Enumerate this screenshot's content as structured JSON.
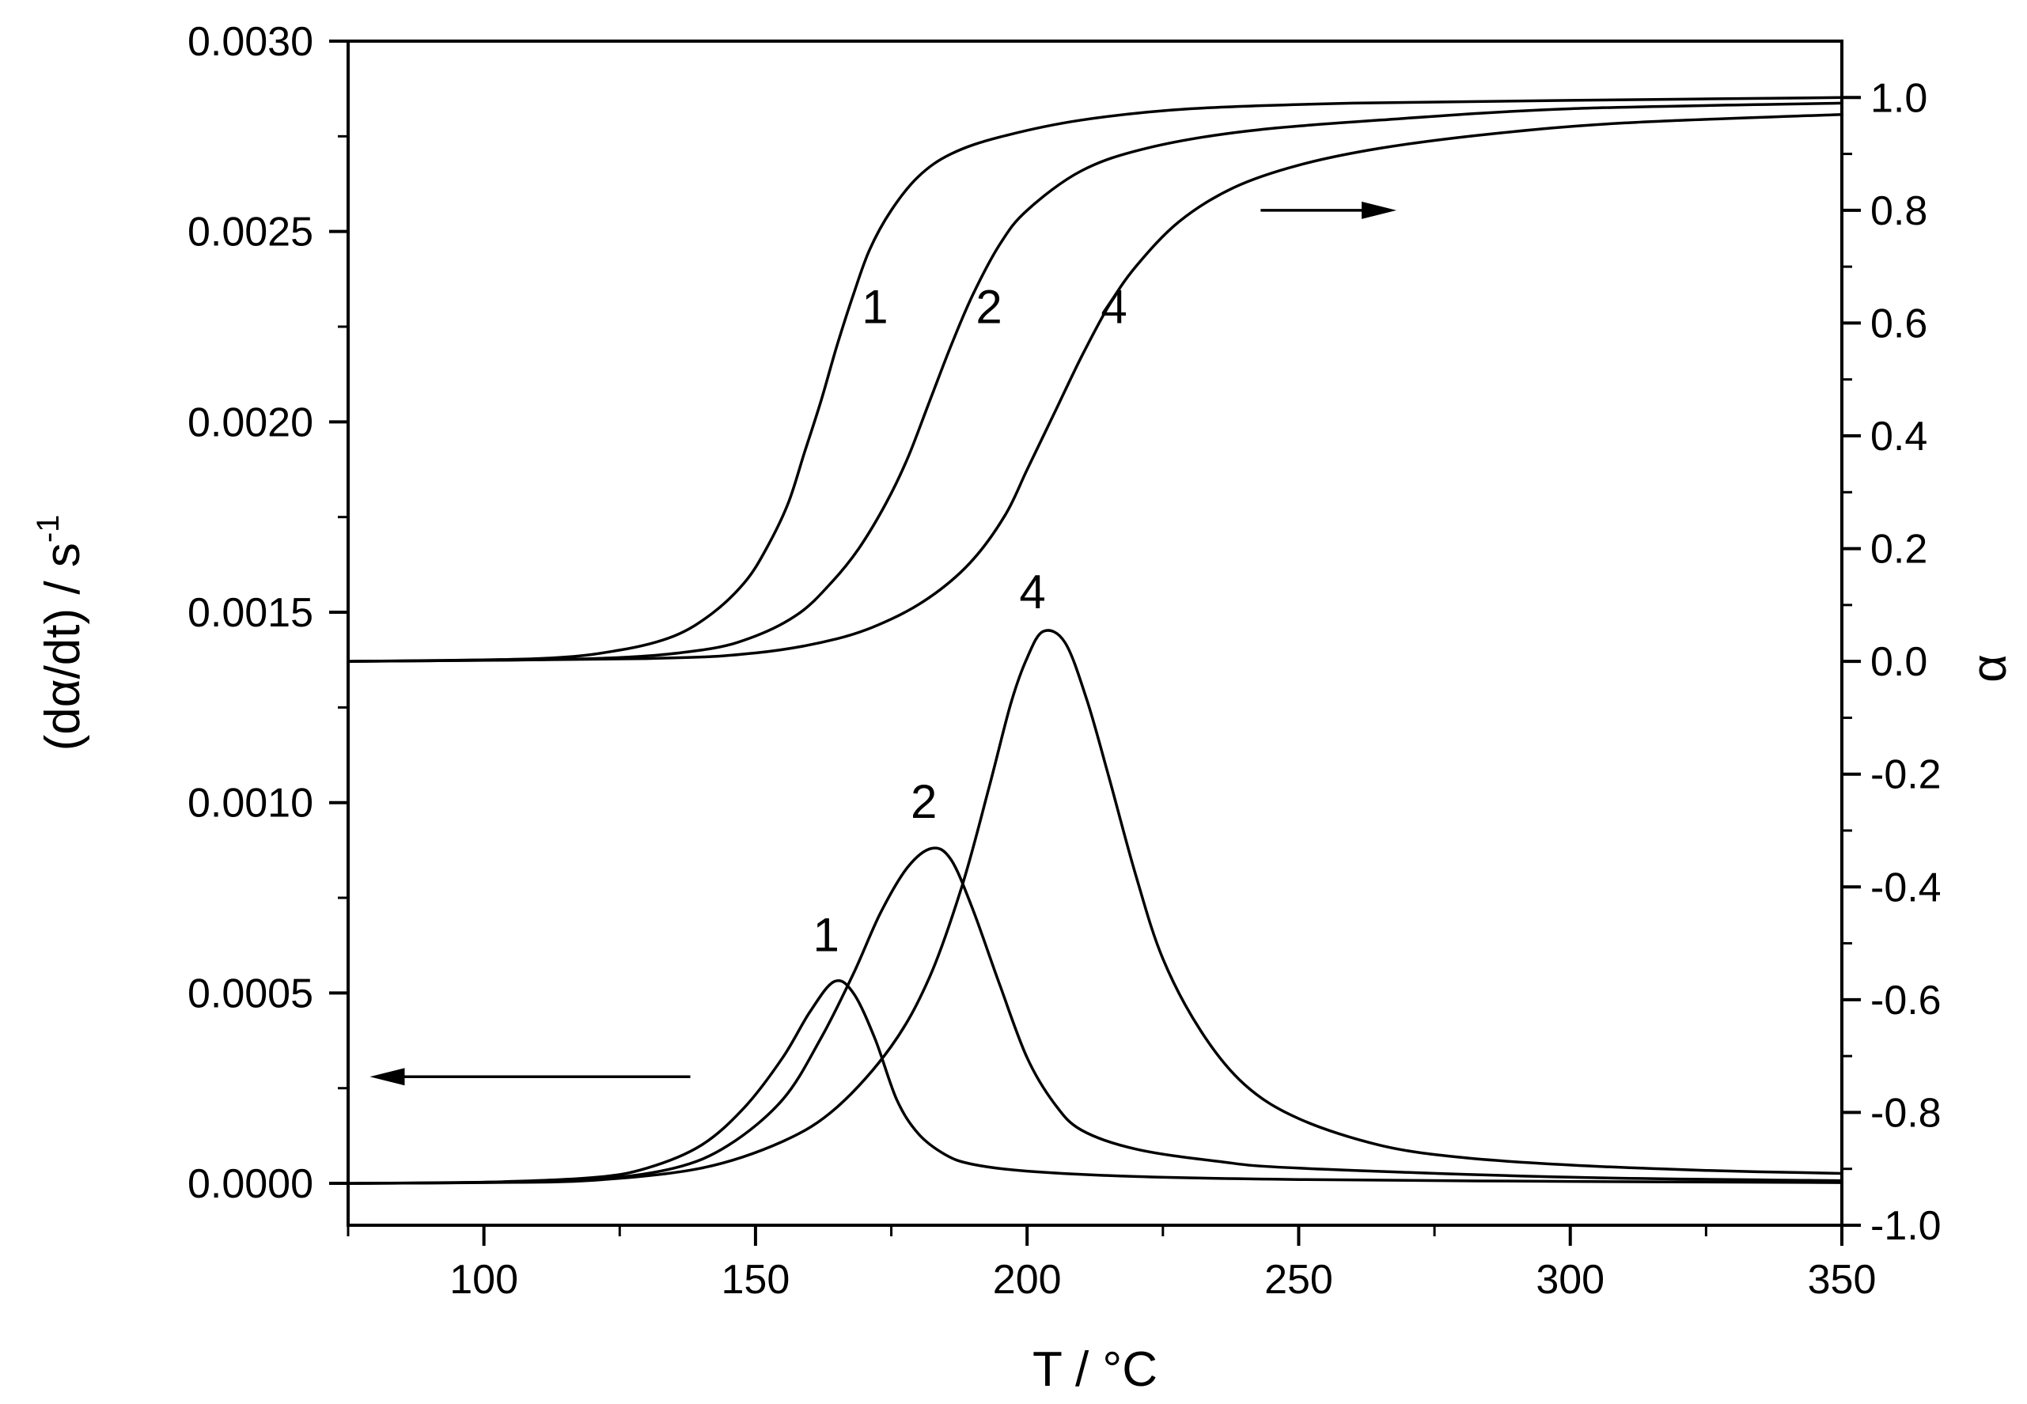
{
  "chart_data": {
    "type": "line",
    "title": "",
    "xlabel": "T / °C",
    "ylabel_left": {
      "main": "(dα/dt) / s",
      "superscript": "-1"
    },
    "ylabel_right": "α",
    "xlim": [
      75,
      350
    ],
    "ylim_left": [
      -0.00011,
      0.003
    ],
    "ylim_right": [
      -1.0,
      1.1
    ],
    "xticks": [
      100,
      150,
      200,
      250,
      300,
      350
    ],
    "xtick_labels": [
      "100",
      "150",
      "200",
      "250",
      "300",
      "350"
    ],
    "yticks_left": [
      0.0,
      0.0005,
      0.001,
      0.0015,
      0.002,
      0.0025,
      0.003
    ],
    "ytick_labels_left": [
      "0.0000",
      "0.0005",
      "0.0010",
      "0.0015",
      "0.0020",
      "0.0025",
      "0.0030"
    ],
    "yticks_right": [
      -1.0,
      -0.8,
      -0.6,
      -0.4,
      -0.2,
      0.0,
      0.2,
      0.4,
      0.6,
      0.8,
      1.0
    ],
    "ytick_labels_right": [
      "-1.0",
      "-0.8",
      "-0.6",
      "-0.4",
      "-0.2",
      "0.0",
      "0.2",
      "0.4",
      "0.6",
      "0.8",
      "1.0"
    ],
    "grid": false,
    "series_rate": [
      {
        "name": "1",
        "axis": "left",
        "x": [
          75,
          100,
          120,
          130,
          140,
          148,
          155,
          160,
          164.5,
          168,
          172,
          176,
          180,
          185,
          190,
          200,
          220,
          250,
          300,
          350
        ],
        "y": [
          0.0,
          3e-06,
          1.5e-05,
          4e-05,
          0.0001,
          0.0002,
          0.00033,
          0.00045,
          0.00053,
          0.0005,
          0.00038,
          0.00022,
          0.00013,
          7.5e-05,
          5e-05,
          3.2e-05,
          1.8e-05,
          1e-05,
          5e-06,
          2e-06
        ]
      },
      {
        "name": "2",
        "axis": "left",
        "x": [
          75,
          100,
          120,
          135,
          145,
          155,
          162,
          168,
          173,
          178,
          182.5,
          186,
          190,
          195,
          200,
          205,
          210,
          220,
          235,
          250,
          300,
          350
        ],
        "y": [
          0.0,
          3e-06,
          1e-05,
          4e-05,
          0.0001,
          0.00022,
          0.00038,
          0.00055,
          0.00071,
          0.00083,
          0.00088,
          0.00085,
          0.00072,
          0.00052,
          0.00033,
          0.00021,
          0.00014,
          9e-05,
          5.8e-05,
          4e-05,
          1.6e-05,
          7e-06
        ]
      },
      {
        "name": "4",
        "axis": "left",
        "x": [
          75,
          100,
          120,
          140,
          155,
          165,
          175,
          182,
          188,
          193,
          197,
          200,
          203,
          207,
          211,
          215,
          220,
          225,
          232,
          240,
          250,
          265,
          280,
          300,
          325,
          350
        ],
        "y": [
          0.0,
          2e-06,
          8e-06,
          4e-05,
          0.00011,
          0.0002,
          0.00036,
          0.00054,
          0.00078,
          0.00104,
          0.00126,
          0.00138,
          0.00145,
          0.00142,
          0.00127,
          0.00107,
          0.00081,
          0.00059,
          0.0004,
          0.00026,
          0.00017,
          0.0001,
          6.8e-05,
          4.8e-05,
          3.4e-05,
          2.6e-05
        ]
      }
    ],
    "series_alpha": [
      {
        "name": "1",
        "axis": "right",
        "x": [
          75,
          110,
          125,
          135,
          142,
          148,
          152,
          156,
          159,
          162,
          165,
          168,
          171,
          175,
          180,
          186,
          195,
          210,
          230,
          260,
          300,
          350
        ],
        "y": [
          0.0,
          0.005,
          0.02,
          0.045,
          0.085,
          0.14,
          0.2,
          0.28,
          0.37,
          0.46,
          0.56,
          0.65,
          0.73,
          0.8,
          0.86,
          0.9,
          0.93,
          0.96,
          0.98,
          0.99,
          0.995,
          1.0
        ]
      },
      {
        "name": "2",
        "axis": "right",
        "x": [
          75,
          120,
          140,
          150,
          158,
          164,
          169,
          174,
          178,
          182,
          186,
          190,
          195,
          200,
          210,
          222,
          240,
          265,
          300,
          350
        ],
        "y": [
          0.0,
          0.005,
          0.02,
          0.045,
          0.085,
          0.14,
          0.2,
          0.28,
          0.36,
          0.46,
          0.56,
          0.65,
          0.74,
          0.8,
          0.87,
          0.91,
          0.94,
          0.96,
          0.98,
          0.99
        ]
      },
      {
        "name": "4",
        "axis": "right",
        "x": [
          75,
          130,
          150,
          165,
          175,
          183,
          190,
          196,
          200,
          205,
          210,
          215,
          220,
          228,
          238,
          250,
          265,
          285,
          310,
          350
        ],
        "y": [
          0.0,
          0.005,
          0.015,
          0.04,
          0.075,
          0.12,
          0.18,
          0.26,
          0.34,
          0.44,
          0.54,
          0.63,
          0.7,
          0.78,
          0.84,
          0.88,
          0.91,
          0.935,
          0.955,
          0.97
        ]
      }
    ],
    "annotations": [
      {
        "text": "1",
        "x": 172,
        "y": 0.6,
        "axis": "right"
      },
      {
        "text": "2",
        "x": 193,
        "y": 0.6,
        "axis": "right"
      },
      {
        "text": "4",
        "x": 216,
        "y": 0.6,
        "axis": "right"
      },
      {
        "text": "1",
        "x": 163,
        "y": 0.00061,
        "axis": "left"
      },
      {
        "text": "2",
        "x": 181,
        "y": 0.00096,
        "axis": "left"
      },
      {
        "text": "4",
        "x": 201,
        "y": 0.00151,
        "axis": "left"
      }
    ],
    "arrows": [
      {
        "name": "arrow-to-right-axis",
        "x_from": 243,
        "x_to": 268,
        "y": 0.8,
        "axis": "right"
      },
      {
        "name": "arrow-to-left-axis",
        "x_from": 138,
        "x_to": 79,
        "y": 0.00028,
        "axis": "left"
      }
    ]
  }
}
